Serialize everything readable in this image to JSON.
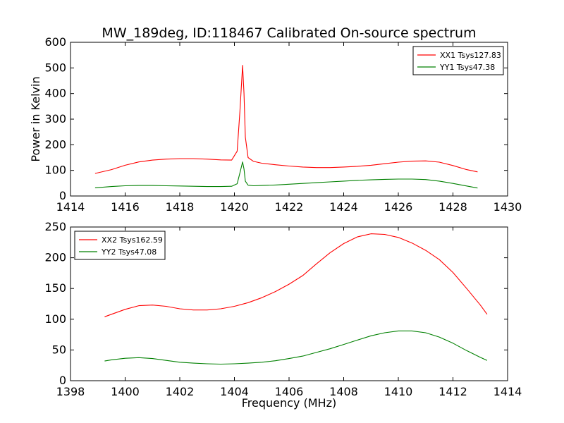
{
  "figure": {
    "title": "MW_189deg, ID:118467 Calibrated On-source spectrum"
  },
  "chart_data": [
    {
      "type": "line",
      "ylabel": "Power in Kelvin",
      "xlabel": "",
      "xlim": [
        1414,
        1430
      ],
      "ylim": [
        0,
        600
      ],
      "xticks": [
        "1414",
        "1416",
        "1418",
        "1420",
        "1422",
        "1424",
        "1426",
        "1428",
        "1430"
      ],
      "yticks": [
        "0",
        "100",
        "200",
        "300",
        "400",
        "500",
        "600"
      ],
      "grid": false,
      "legend_position": "top-right",
      "series": [
        {
          "name": "XX1 Tsys127.83",
          "color": "#ff0000",
          "x": [
            1414.9,
            1415.5,
            1416,
            1416.5,
            1417,
            1417.5,
            1418,
            1418.5,
            1419,
            1419.5,
            1419.9,
            1420.1,
            1420.2,
            1420.3,
            1420.35,
            1420.4,
            1420.5,
            1420.7,
            1421,
            1421.5,
            1422,
            1422.5,
            1423,
            1423.5,
            1424,
            1424.5,
            1425,
            1425.5,
            1426,
            1426.5,
            1427,
            1427.5,
            1428,
            1428.5,
            1428.9
          ],
          "values": [
            88,
            103,
            120,
            133,
            140,
            144,
            146,
            146,
            144,
            141,
            140,
            175,
            330,
            510,
            400,
            230,
            150,
            135,
            128,
            122,
            117,
            113,
            111,
            111,
            113,
            116,
            120,
            126,
            132,
            136,
            137,
            132,
            119,
            103,
            94
          ]
        },
        {
          "name": "YY1 Tsys47.38",
          "color": "#008000",
          "x": [
            1414.9,
            1415.5,
            1416,
            1416.5,
            1417,
            1417.5,
            1418,
            1418.5,
            1419,
            1419.5,
            1419.9,
            1420.1,
            1420.2,
            1420.3,
            1420.35,
            1420.4,
            1420.5,
            1420.7,
            1421,
            1421.5,
            1422,
            1422.5,
            1423,
            1423.5,
            1424,
            1424.5,
            1425,
            1425.5,
            1426,
            1426.5,
            1427,
            1427.5,
            1428,
            1428.5,
            1428.9
          ],
          "values": [
            32,
            37,
            40,
            41,
            41,
            40,
            39,
            38,
            37,
            37,
            38,
            48,
            90,
            133,
            105,
            58,
            42,
            40,
            41,
            43,
            46,
            49,
            52,
            55,
            58,
            61,
            63,
            65,
            66,
            66,
            64,
            58,
            49,
            39,
            31
          ]
        }
      ]
    },
    {
      "type": "line",
      "ylabel": "",
      "xlabel": "Frequency (MHz)",
      "xlim": [
        1398,
        1414
      ],
      "ylim": [
        0,
        250
      ],
      "xticks": [
        "1398",
        "1400",
        "1402",
        "1404",
        "1406",
        "1408",
        "1410",
        "1412",
        "1414"
      ],
      "yticks": [
        "0",
        "50",
        "100",
        "150",
        "200",
        "250"
      ],
      "grid": false,
      "legend_position": "top-left",
      "series": [
        {
          "name": "XX2 Tsys162.59",
          "color": "#ff0000",
          "x": [
            1399.25,
            1399.5,
            1400,
            1400.5,
            1401,
            1401.5,
            1402,
            1402.5,
            1403,
            1403.5,
            1404,
            1404.5,
            1405,
            1405.5,
            1406,
            1406.5,
            1407,
            1407.5,
            1408,
            1408.5,
            1409,
            1409.5,
            1410,
            1410.5,
            1411,
            1411.5,
            1412,
            1412.5,
            1413,
            1413.25
          ],
          "values": [
            104,
            108,
            116,
            122,
            123,
            121,
            117,
            115,
            115,
            117,
            121,
            127,
            135,
            145,
            157,
            171,
            190,
            208,
            223,
            234,
            239,
            238,
            233,
            224,
            212,
            197,
            176,
            150,
            123,
            108
          ]
        },
        {
          "name": "YY2 Tsys47.08",
          "color": "#008000",
          "x": [
            1399.25,
            1399.5,
            1400,
            1400.5,
            1401,
            1401.5,
            1402,
            1402.5,
            1403,
            1403.5,
            1404,
            1404.5,
            1405,
            1405.5,
            1406,
            1406.5,
            1407,
            1407.5,
            1408,
            1408.5,
            1409,
            1409.5,
            1410,
            1410.5,
            1411,
            1411.5,
            1412,
            1412.5,
            1413,
            1413.25
          ],
          "values": [
            32,
            34,
            36.5,
            37.5,
            36,
            33,
            30,
            28.5,
            27.5,
            27,
            27.5,
            28.5,
            30,
            32.5,
            36,
            40,
            46,
            52,
            59,
            66,
            73,
            78,
            81,
            81,
            78,
            71,
            61,
            49,
            38,
            33
          ]
        }
      ]
    }
  ]
}
